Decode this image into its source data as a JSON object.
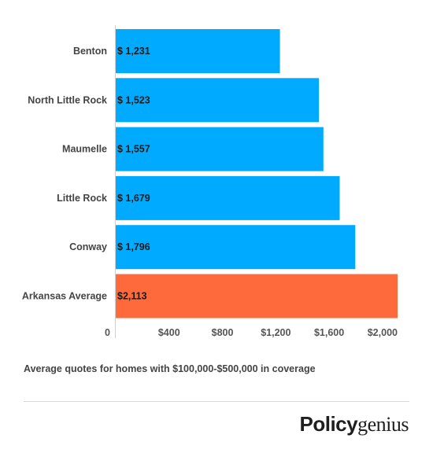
{
  "chart_data": {
    "type": "bar",
    "orientation": "horizontal",
    "categories": [
      "Benton",
      "North Little Rock",
      "Maumelle",
      "Little Rock",
      "Conway",
      "Arkansas Average"
    ],
    "values": [
      1231,
      1523,
      1557,
      1679,
      1796,
      2113
    ],
    "data_labels": [
      "$ 1,231",
      "$ 1,523",
      "$ 1,557",
      "$ 1,679",
      "$ 1,796",
      "$2,113"
    ],
    "colors": [
      "#00aaff",
      "#00aaff",
      "#00aaff",
      "#00aaff",
      "#00aaff",
      "#ff6a3d"
    ],
    "xlim": [
      0,
      2113
    ],
    "xticks": [
      0,
      400,
      800,
      1200,
      1600,
      2000
    ],
    "xtick_labels": [
      "0",
      "$400",
      "$800",
      "$1,200",
      "$1,600",
      "$2,000"
    ],
    "grid": false,
    "xlabel": "",
    "ylabel": ""
  },
  "caption": "Average quotes for homes with $100,000-$500,000 in coverage",
  "logo": {
    "bold": "Policy",
    "light": "genius"
  }
}
